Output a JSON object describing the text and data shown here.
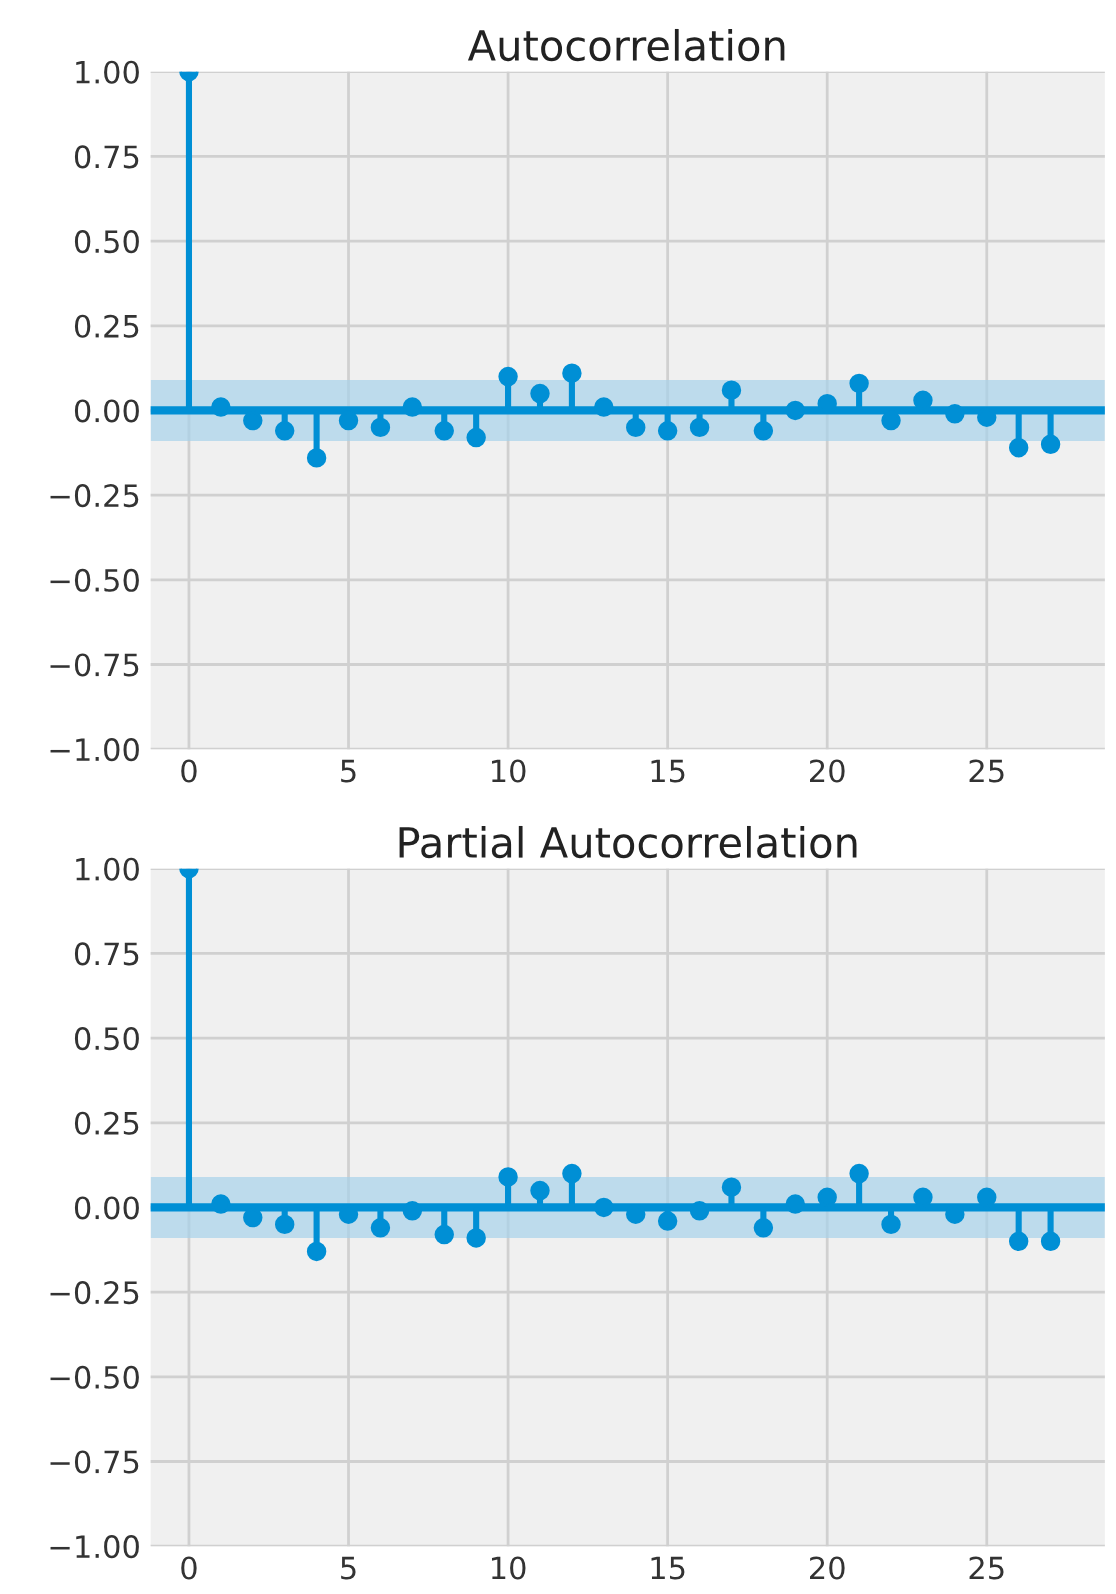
{
  "chart_data": [
    {
      "type": "lollipop",
      "title": "Autocorrelation",
      "x": [
        0,
        1,
        2,
        3,
        4,
        5,
        6,
        7,
        8,
        9,
        10,
        11,
        12,
        13,
        14,
        15,
        16,
        17,
        18,
        19,
        20,
        21,
        22,
        23,
        24,
        25,
        26,
        27
      ],
      "series": [
        {
          "color": "#008fd5",
          "values": [
            1.0,
            0.01,
            -0.03,
            -0.06,
            -0.14,
            -0.03,
            -0.05,
            0.01,
            -0.06,
            -0.08,
            0.1,
            0.05,
            0.11,
            0.01,
            -0.05,
            -0.06,
            -0.05,
            0.06,
            -0.06,
            0.0,
            0.02,
            0.08,
            -0.03,
            0.03,
            -0.01,
            -0.02,
            -0.11,
            -0.1
          ]
        }
      ],
      "xlim": [
        -1.2,
        28.7
      ],
      "ylim": [
        -1.0,
        1.0
      ],
      "xticks": [
        0,
        5,
        10,
        15,
        20,
        25
      ],
      "yticks": [
        {
          "value": -1.0,
          "label": "−1.00"
        },
        {
          "value": -0.75,
          "label": "−0.75"
        },
        {
          "value": -0.5,
          "label": "−0.50"
        },
        {
          "value": -0.25,
          "label": "−0.25"
        },
        {
          "value": 0.0,
          "label": "0.00"
        },
        {
          "value": 0.25,
          "label": "0.25"
        },
        {
          "value": 0.5,
          "label": "0.50"
        },
        {
          "value": 0.75,
          "label": "0.75"
        },
        {
          "value": 1.0,
          "label": "1.00"
        }
      ],
      "ref_lines": [
        {
          "axis": "y",
          "value": 0,
          "color": "#008fd5"
        }
      ],
      "bands": [
        {
          "axis": "y",
          "from": -0.09,
          "to": 0.09,
          "color": "#a6d1ea"
        }
      ],
      "marker": "circle",
      "grid": true
    },
    {
      "type": "lollipop",
      "title": "Partial Autocorrelation",
      "x": [
        0,
        1,
        2,
        3,
        4,
        5,
        6,
        7,
        8,
        9,
        10,
        11,
        12,
        13,
        14,
        15,
        16,
        17,
        18,
        19,
        20,
        21,
        22,
        23,
        24,
        25,
        26,
        27
      ],
      "series": [
        {
          "color": "#008fd5",
          "values": [
            1.0,
            0.01,
            -0.03,
            -0.05,
            -0.13,
            -0.02,
            -0.06,
            -0.01,
            -0.08,
            -0.09,
            0.09,
            0.05,
            0.1,
            0.0,
            -0.02,
            -0.04,
            -0.01,
            0.06,
            -0.06,
            0.01,
            0.03,
            0.1,
            -0.05,
            0.03,
            -0.02,
            0.03,
            -0.1,
            -0.1
          ]
        }
      ],
      "xlim": [
        -1.2,
        28.7
      ],
      "ylim": [
        -1.0,
        1.0
      ],
      "xticks": [
        0,
        5,
        10,
        15,
        20,
        25
      ],
      "yticks": [
        {
          "value": -1.0,
          "label": "−1.00"
        },
        {
          "value": -0.75,
          "label": "−0.75"
        },
        {
          "value": -0.5,
          "label": "−0.50"
        },
        {
          "value": -0.25,
          "label": "−0.25"
        },
        {
          "value": 0.0,
          "label": "0.00"
        },
        {
          "value": 0.25,
          "label": "0.25"
        },
        {
          "value": 0.5,
          "label": "0.50"
        },
        {
          "value": 0.75,
          "label": "0.75"
        },
        {
          "value": 1.0,
          "label": "1.00"
        }
      ],
      "ref_lines": [
        {
          "axis": "y",
          "value": 0,
          "color": "#008fd5"
        }
      ],
      "bands": [
        {
          "axis": "y",
          "from": -0.09,
          "to": 0.09,
          "color": "#a6d1ea"
        }
      ],
      "marker": "circle",
      "grid": true
    }
  ]
}
